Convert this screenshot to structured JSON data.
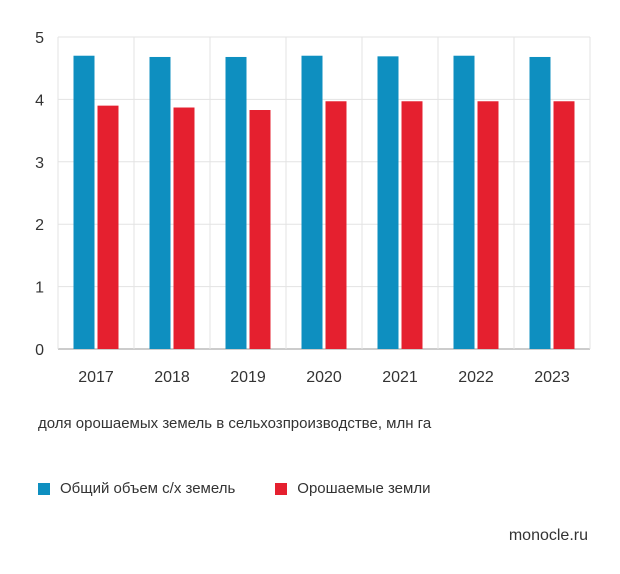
{
  "chart_data": {
    "type": "bar",
    "categories": [
      "2017",
      "2018",
      "2019",
      "2020",
      "2021",
      "2022",
      "2023"
    ],
    "series": [
      {
        "name": "Общий объем с/х земель",
        "color": "#0e8fc0",
        "values": [
          4.7,
          4.68,
          4.68,
          4.7,
          4.69,
          4.7,
          4.68
        ]
      },
      {
        "name": "Орошаемые земли",
        "color": "#e5202f",
        "values": [
          3.9,
          3.87,
          3.83,
          3.97,
          3.97,
          3.97,
          3.97
        ]
      }
    ],
    "ylim": [
      0,
      5
    ],
    "yticks": [
      "0",
      "1",
      "2",
      "3",
      "4",
      "5"
    ],
    "title": "",
    "xlabel": "",
    "ylabel": ""
  },
  "caption": "доля орошаемых земель в сельхозпроизводстве, млн га",
  "brand": "monocle.ru"
}
